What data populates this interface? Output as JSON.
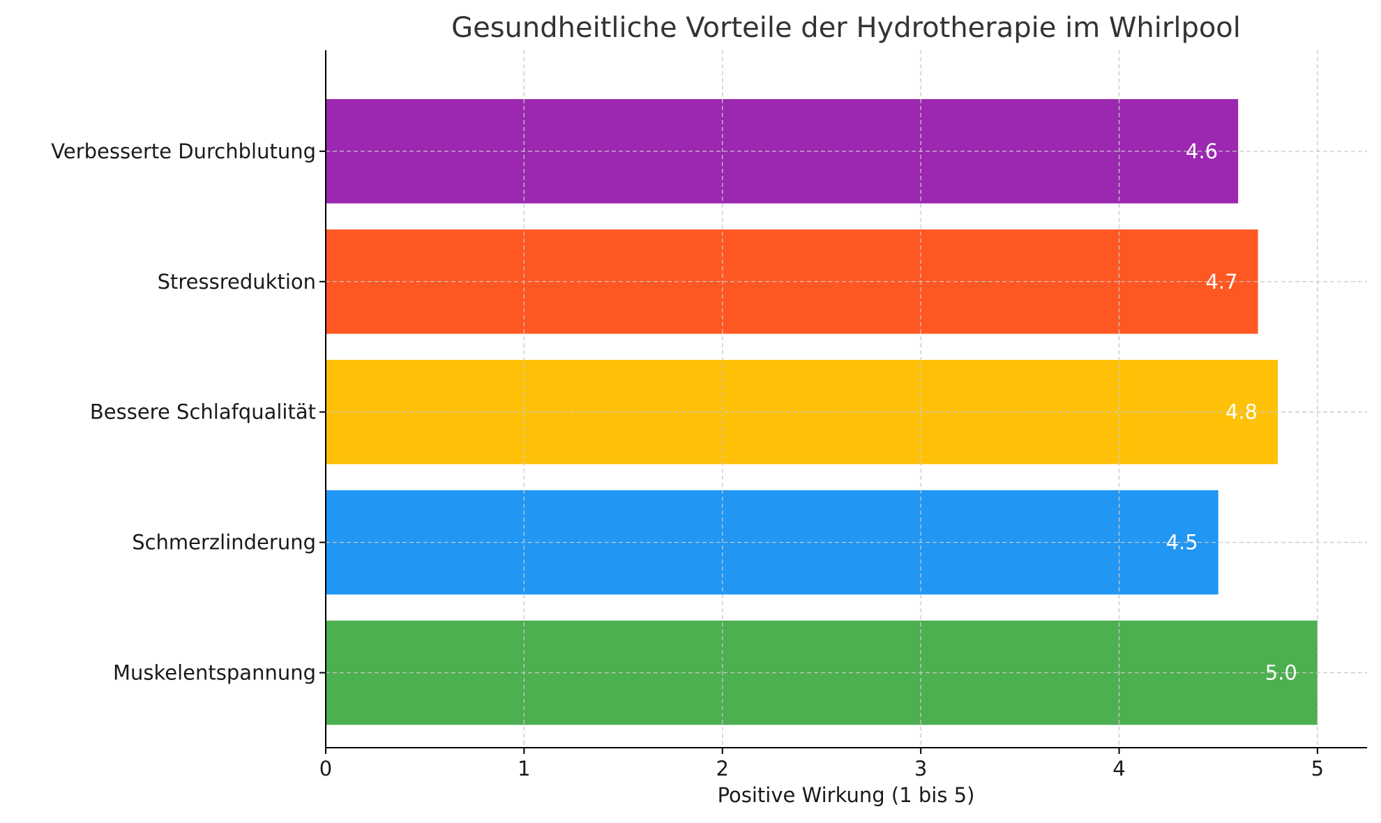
{
  "chart_data": {
    "type": "bar",
    "orientation": "horizontal",
    "title": "Gesundheitliche Vorteile der Hydrotherapie im Whirlpool",
    "xlabel": "Positive Wirkung (1 bis 5)",
    "ylabel": "",
    "xlim": [
      0,
      5.25
    ],
    "xticks": [
      0,
      1,
      2,
      3,
      4,
      5
    ],
    "grid": true,
    "categories": [
      "Muskelentspannung",
      "Schmerzlinderung",
      "Bessere Schlafqualität",
      "Stressreduktion",
      "Verbesserte Durchblutung"
    ],
    "values": [
      5.0,
      4.5,
      4.8,
      4.7,
      4.6
    ],
    "value_labels": [
      "5.0",
      "4.5",
      "4.8",
      "4.7",
      "4.6"
    ],
    "colors": [
      "#4caf50",
      "#2196f3",
      "#ffc107",
      "#ff5722",
      "#9c27b0"
    ]
  }
}
